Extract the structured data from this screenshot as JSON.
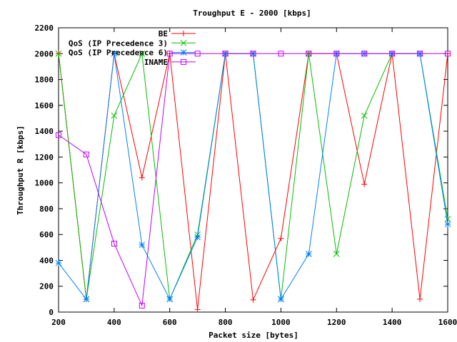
{
  "chart_data": {
    "type": "line",
    "title": "Troughput E - 2000 [kbps]",
    "xlabel": "Packet size [bytes]",
    "ylabel": "Throughput R [kbps]",
    "xlim": [
      200,
      1600
    ],
    "ylim": [
      0,
      2200
    ],
    "xticks": [
      200,
      400,
      600,
      800,
      1000,
      1200,
      1400,
      1600
    ],
    "yticks": [
      0,
      200,
      400,
      600,
      800,
      1000,
      1200,
      1400,
      1600,
      1800,
      2000,
      2200
    ],
    "grid": false,
    "legend_position": "top-left",
    "x": [
      200,
      300,
      400,
      500,
      600,
      700,
      800,
      900,
      1000,
      1100,
      1200,
      1300,
      1400,
      1500,
      1600
    ],
    "series": [
      {
        "name": "BE",
        "marker": "plus",
        "color": "#ff0000",
        "values": [
          2000,
          100,
          2000,
          1040,
          2000,
          20,
          2000,
          95,
          570,
          2000,
          2000,
          990,
          2000,
          100,
          2000
        ]
      },
      {
        "name": "QoS (IP Precedence 3)",
        "marker": "cross",
        "color": "#00c000",
        "values": [
          2000,
          100,
          1520,
          2000,
          100,
          600,
          2000,
          2000,
          100,
          2000,
          450,
          1520,
          2000,
          2000,
          720
        ]
      },
      {
        "name": "QoS (IP Precedence 6)",
        "marker": "star",
        "color": "#0080ff",
        "values": [
          380,
          100,
          2000,
          520,
          100,
          580,
          2000,
          2000,
          100,
          450,
          2000,
          2000,
          2000,
          2000,
          680
        ]
      },
      {
        "name": "INAME",
        "marker": "square",
        "color": "#c000ff",
        "values": [
          1370,
          1220,
          530,
          50,
          2000,
          2000,
          2000,
          2000,
          2000,
          2000,
          2000,
          2000,
          2000,
          2000,
          2000
        ]
      }
    ]
  }
}
